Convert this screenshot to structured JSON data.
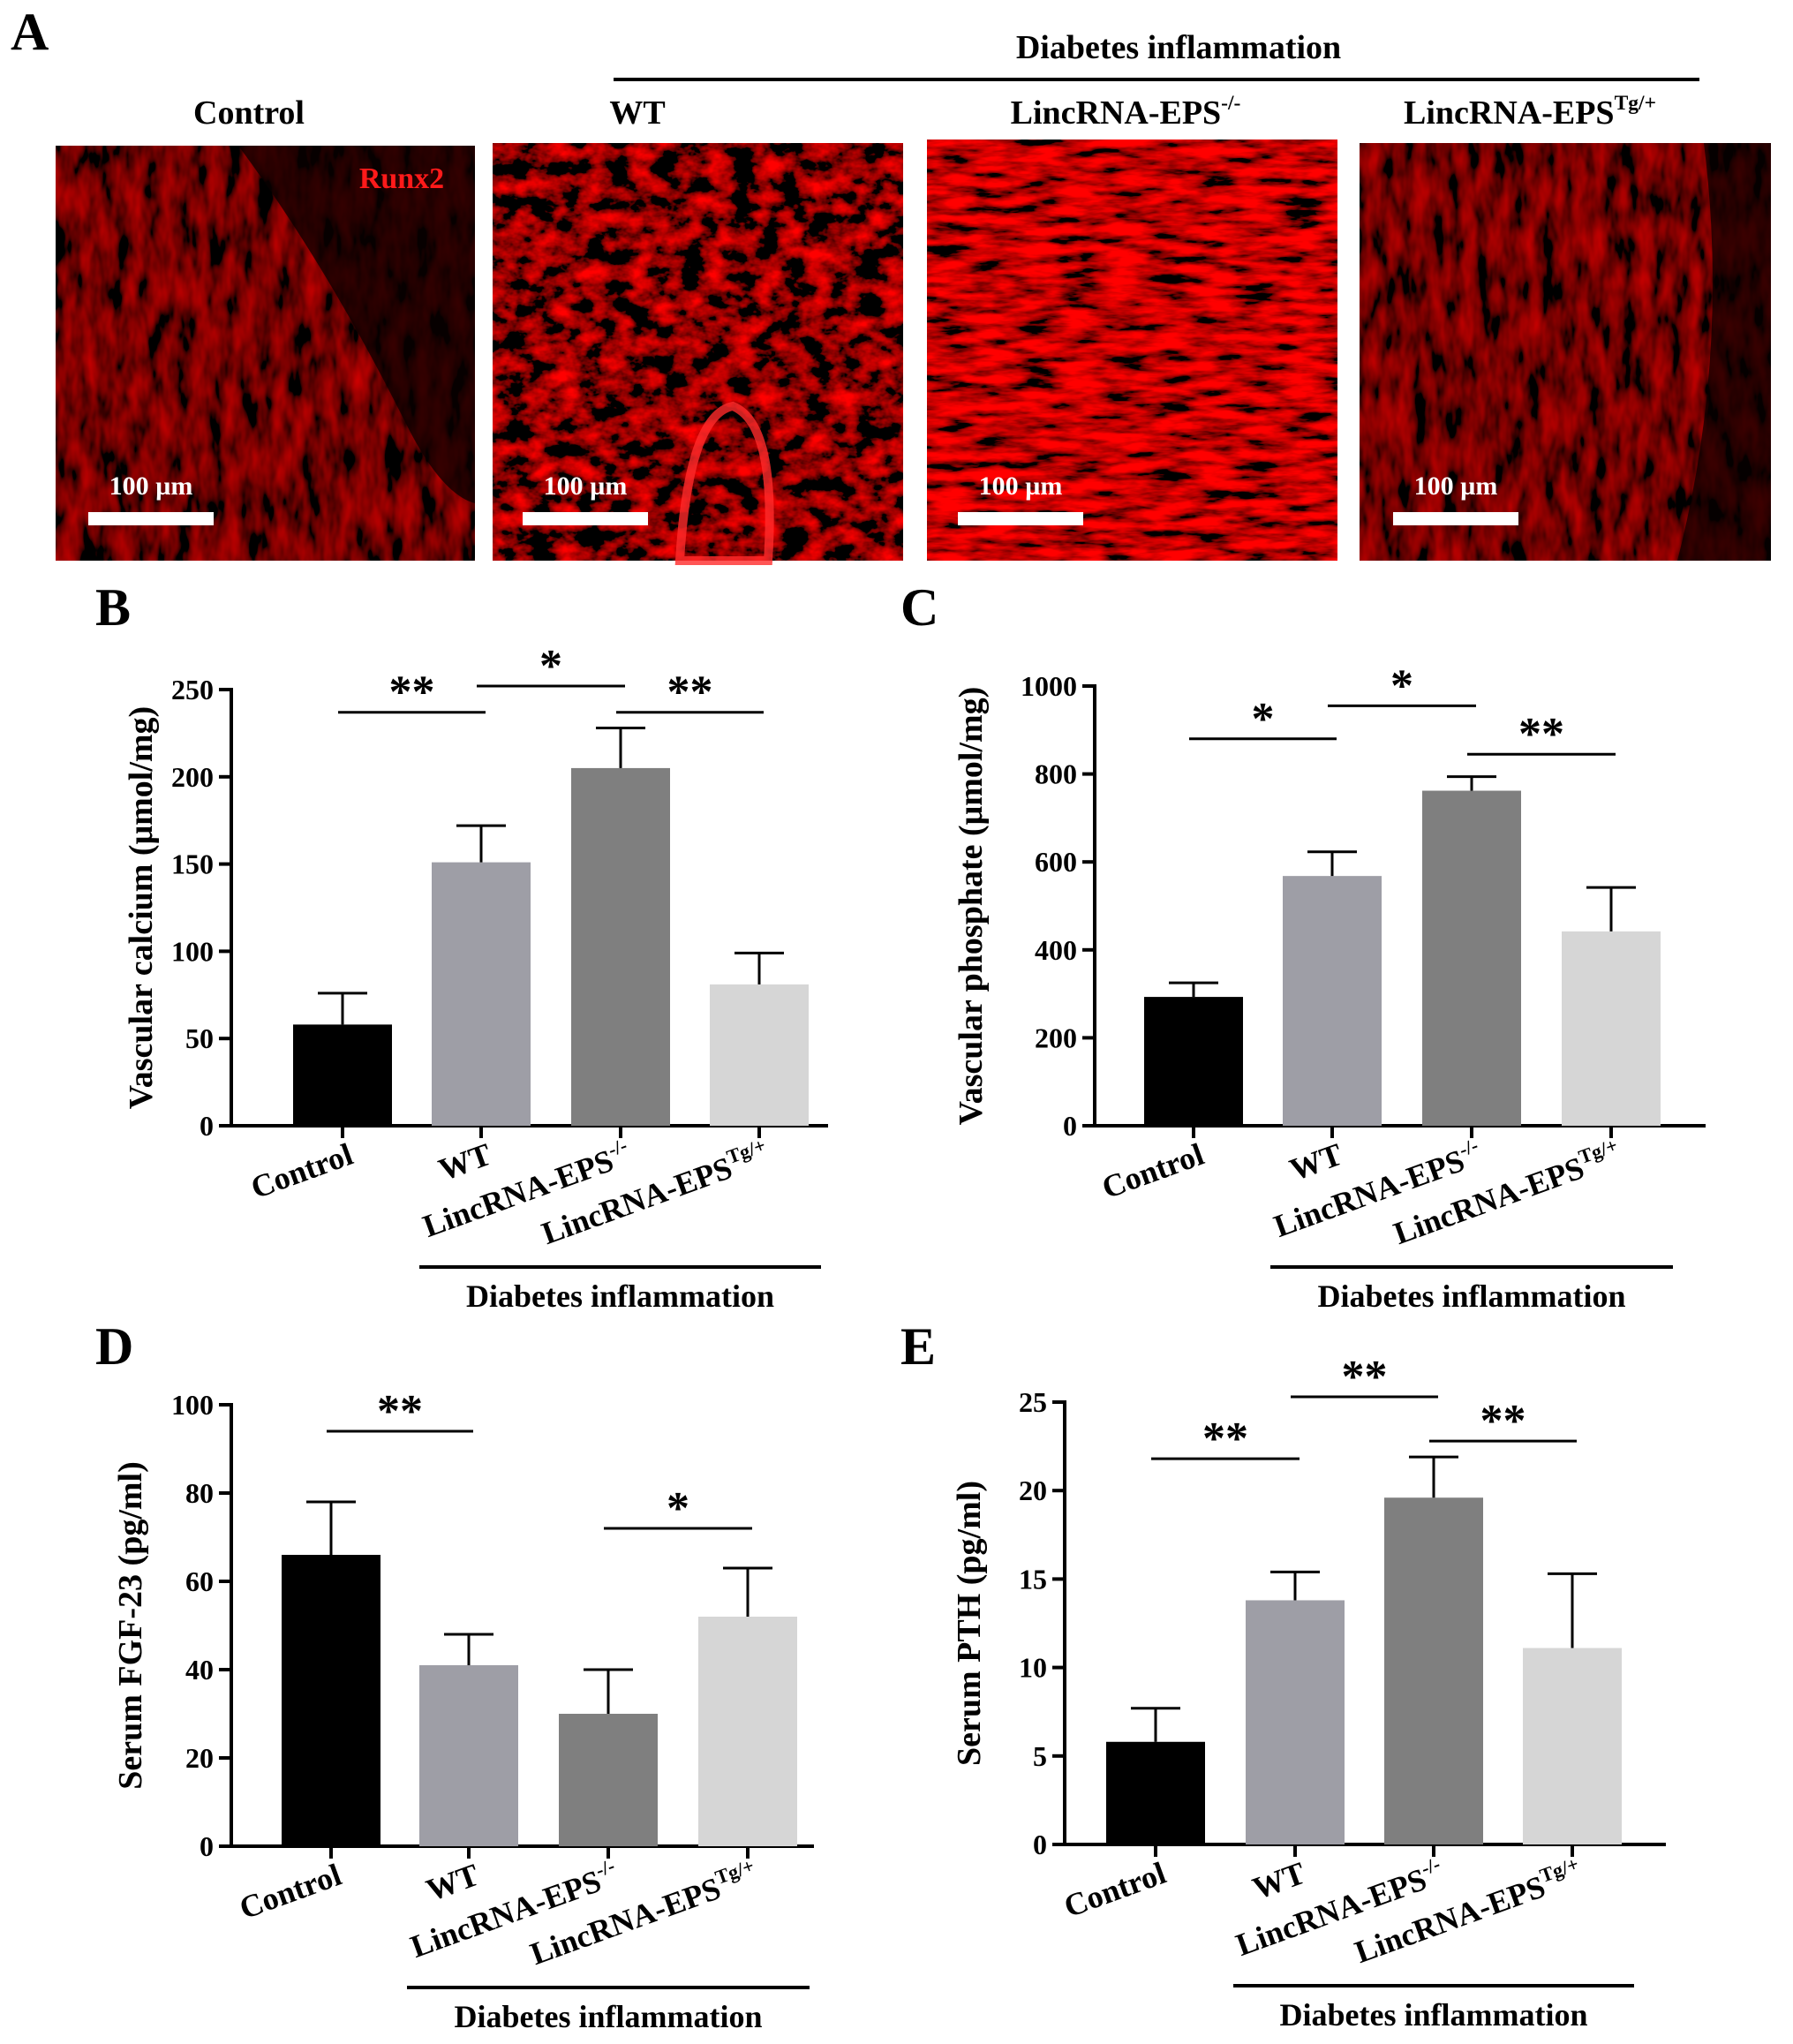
{
  "panel_a": {
    "letter": "A",
    "group_label": "Diabetes inflammation",
    "scale_bar_label": "100 µm",
    "stain_label": "Runx2",
    "images": [
      {
        "title": "Control",
        "sup": "",
        "intensity": "low"
      },
      {
        "title": "WT",
        "sup": "",
        "intensity": "medium"
      },
      {
        "title": "LincRNA-EPS",
        "sup": "-/-",
        "intensity": "high"
      },
      {
        "title": "LincRNA-EPS",
        "sup": "Tg/+",
        "intensity": "low"
      }
    ]
  },
  "colors": {
    "control": "#000000",
    "wt": "#9e9ea6",
    "ko": "#7f7f7f",
    "tg": "#d6d6d6",
    "fluorescence": "#ff1a1a",
    "image_bg": "#200000"
  },
  "chart_data": [
    {
      "panel": "B",
      "type": "bar",
      "ylabel": "Vascular calcium (μmol/mg)",
      "ylim": [
        0,
        250
      ],
      "yticks": [
        "0",
        "50",
        "100",
        "150",
        "200",
        "250"
      ],
      "categories": [
        {
          "name": "Control",
          "sup": ""
        },
        {
          "name": "WT",
          "sup": ""
        },
        {
          "name": "LincRNA-EPS",
          "sup": "-/-"
        },
        {
          "name": "LincRNA-EPS",
          "sup": "Tg/+"
        }
      ],
      "values": [
        58,
        151,
        205,
        81
      ],
      "errors": [
        18,
        21,
        23,
        18
      ],
      "group_label": "Diabetes inflammation",
      "significance": [
        {
          "from": 0,
          "to": 1,
          "label": "**",
          "y": 237
        },
        {
          "from": 1,
          "to": 2,
          "label": "*",
          "y": 252
        },
        {
          "from": 2,
          "to": 3,
          "label": "**",
          "y": 237
        }
      ]
    },
    {
      "panel": "C",
      "type": "bar",
      "ylabel": "Vascular phosphate (μmol/mg)",
      "ylim": [
        0,
        1000
      ],
      "yticks": [
        "0",
        "200",
        "400",
        "600",
        "800",
        "1000"
      ],
      "categories": [
        {
          "name": "Control",
          "sup": ""
        },
        {
          "name": "WT",
          "sup": ""
        },
        {
          "name": "LincRNA-EPS",
          "sup": "-/-"
        },
        {
          "name": "LincRNA-EPS",
          "sup": "Tg/+"
        }
      ],
      "values": [
        293,
        568,
        762,
        442
      ],
      "errors": [
        32,
        55,
        32,
        100
      ],
      "group_label": "Diabetes inflammation",
      "significance": [
        {
          "from": 0,
          "to": 1,
          "label": "*",
          "y": 880
        },
        {
          "from": 1,
          "to": 2,
          "label": "*",
          "y": 955
        },
        {
          "from": 2,
          "to": 3,
          "label": "**",
          "y": 845
        }
      ]
    },
    {
      "panel": "D",
      "type": "bar",
      "ylabel": "Serum FGF-23 (pg/ml)",
      "ylim": [
        0,
        100
      ],
      "yticks": [
        "0",
        "20",
        "40",
        "60",
        "80",
        "100"
      ],
      "categories": [
        {
          "name": "Control",
          "sup": ""
        },
        {
          "name": "WT",
          "sup": ""
        },
        {
          "name": "LincRNA-EPS",
          "sup": "-/-"
        },
        {
          "name": "LincRNA-EPS",
          "sup": "Tg/+"
        }
      ],
      "values": [
        66,
        41,
        30,
        52
      ],
      "errors": [
        12,
        7,
        10,
        11
      ],
      "group_label": "Diabetes inflammation",
      "significance": [
        {
          "from": 0,
          "to": 1,
          "label": "**",
          "y": 94
        },
        {
          "from": 2,
          "to": 3,
          "label": "*",
          "y": 72
        }
      ]
    },
    {
      "panel": "E",
      "type": "bar",
      "ylabel": "Serum PTH (pg/ml)",
      "ylim": [
        0,
        25
      ],
      "yticks": [
        "0",
        "5",
        "10",
        "15",
        "20",
        "25"
      ],
      "categories": [
        {
          "name": "Control",
          "sup": ""
        },
        {
          "name": "WT",
          "sup": ""
        },
        {
          "name": "LincRNA-EPS",
          "sup": "-/-"
        },
        {
          "name": "LincRNA-EPS",
          "sup": "Tg/+"
        }
      ],
      "values": [
        5.8,
        13.8,
        19.6,
        11.1
      ],
      "errors": [
        1.9,
        1.6,
        2.3,
        4.2
      ],
      "group_label": "Diabetes inflammation",
      "significance": [
        {
          "from": 0,
          "to": 1,
          "label": "**",
          "y": 21.8
        },
        {
          "from": 1,
          "to": 2,
          "label": "**",
          "y": 25.3
        },
        {
          "from": 2,
          "to": 3,
          "label": "**",
          "y": 22.8
        }
      ]
    }
  ]
}
